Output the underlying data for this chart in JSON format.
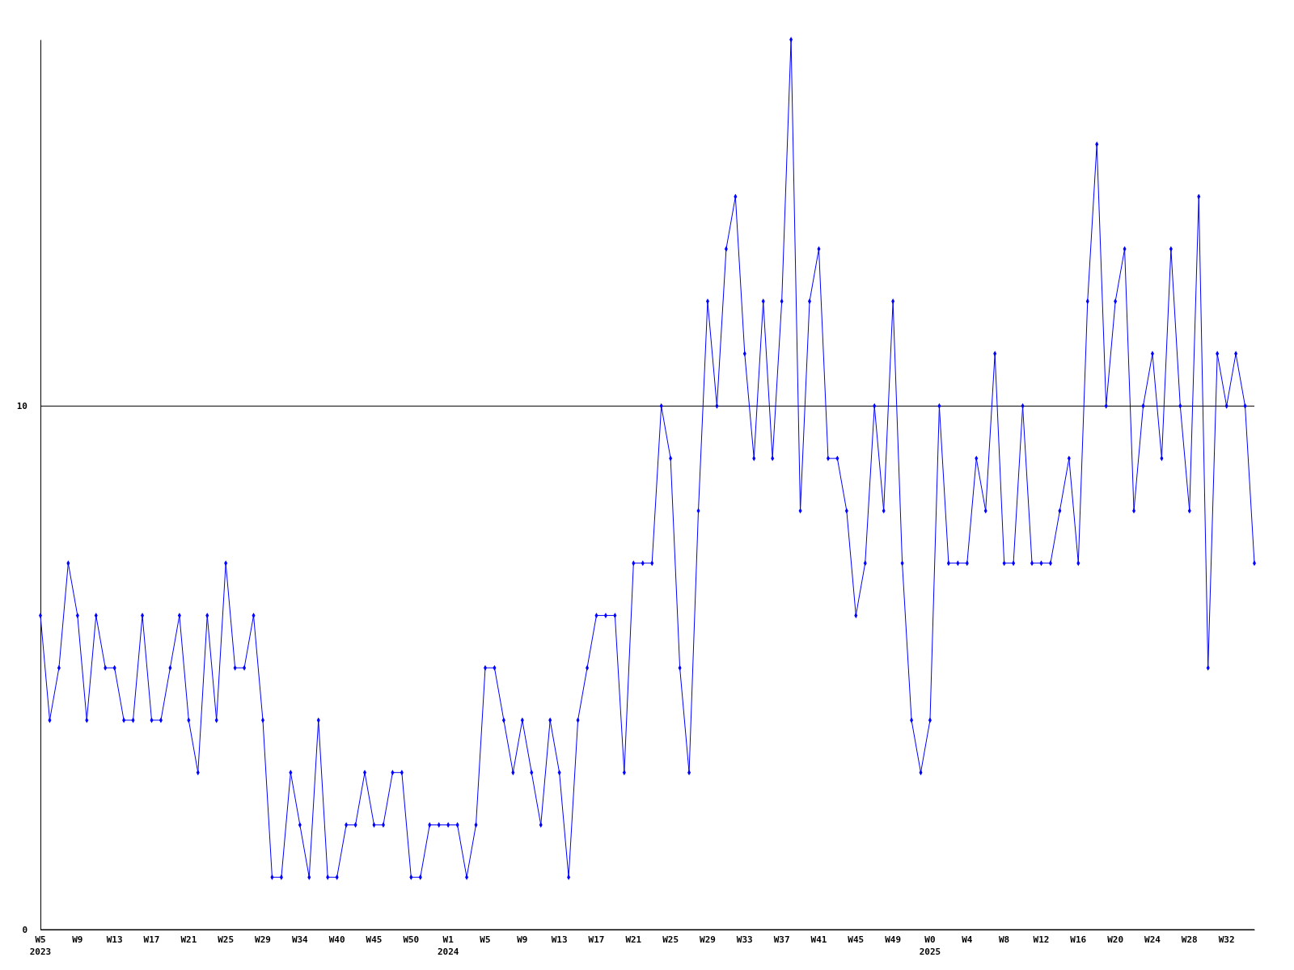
{
  "chart_data": {
    "type": "line",
    "categories": [
      "W5\n2023",
      null,
      null,
      null,
      "W9",
      null,
      null,
      null,
      "W13",
      null,
      null,
      null,
      "W17",
      null,
      null,
      null,
      "W21",
      null,
      null,
      null,
      "W25",
      null,
      null,
      null,
      "W29",
      null,
      null,
      null,
      "W34",
      null,
      null,
      null,
      "W40",
      null,
      null,
      null,
      "W45",
      null,
      null,
      null,
      "W50",
      null,
      null,
      null,
      "W1\n2024",
      null,
      null,
      null,
      "W5",
      null,
      null,
      null,
      "W9",
      null,
      null,
      null,
      "W13",
      null,
      null,
      null,
      "W17",
      null,
      null,
      null,
      "W21",
      null,
      null,
      null,
      "W25",
      null,
      null,
      null,
      "W29",
      null,
      null,
      null,
      "W33",
      null,
      null,
      null,
      "W37",
      null,
      null,
      null,
      "W41",
      null,
      null,
      null,
      "W45",
      null,
      null,
      null,
      "W49",
      null,
      null,
      null,
      "W0\n2025",
      null,
      null,
      null,
      "W4",
      null,
      null,
      null,
      "W8",
      null,
      null,
      null,
      "W12",
      null,
      null,
      null,
      "W16",
      null,
      null,
      null,
      "W20",
      null,
      null,
      null,
      "W24",
      null,
      null,
      null,
      "W28",
      null,
      null,
      null,
      "W32",
      null,
      null,
      null
    ],
    "series": [
      {
        "color": "#0000ff",
        "values": [
          6,
          4,
          5,
          7,
          6,
          4,
          6,
          5,
          5,
          4,
          4,
          6,
          4,
          4,
          5,
          6,
          4,
          3,
          6,
          4,
          7,
          5,
          5,
          6,
          4,
          1,
          1,
          3,
          2,
          1,
          4,
          1,
          1,
          2,
          2,
          3,
          2,
          2,
          3,
          3,
          1,
          1,
          2,
          2,
          2,
          2,
          1,
          2,
          5,
          5,
          4,
          3,
          4,
          3,
          2,
          4,
          3,
          1,
          4,
          5,
          6,
          6,
          6,
          3,
          7,
          7,
          7,
          10,
          9,
          5,
          3,
          8,
          12,
          10,
          13,
          14,
          11,
          9,
          12,
          9,
          12,
          17,
          8,
          12,
          13,
          9,
          9,
          8,
          6,
          7,
          10,
          8,
          12,
          7,
          4,
          3,
          4,
          10,
          7,
          7,
          7,
          9,
          8,
          11,
          7,
          7,
          10,
          7,
          7,
          7,
          8,
          9,
          7,
          12,
          15,
          10,
          12,
          13,
          8,
          10,
          11,
          9,
          13,
          10,
          8,
          14,
          5,
          11,
          10,
          11,
          10,
          7
        ]
      }
    ],
    "ylim": [
      0,
      17
    ],
    "yticks": [
      0,
      10
    ],
    "grid": "y",
    "marker": "diamond",
    "line_style": "solid"
  }
}
